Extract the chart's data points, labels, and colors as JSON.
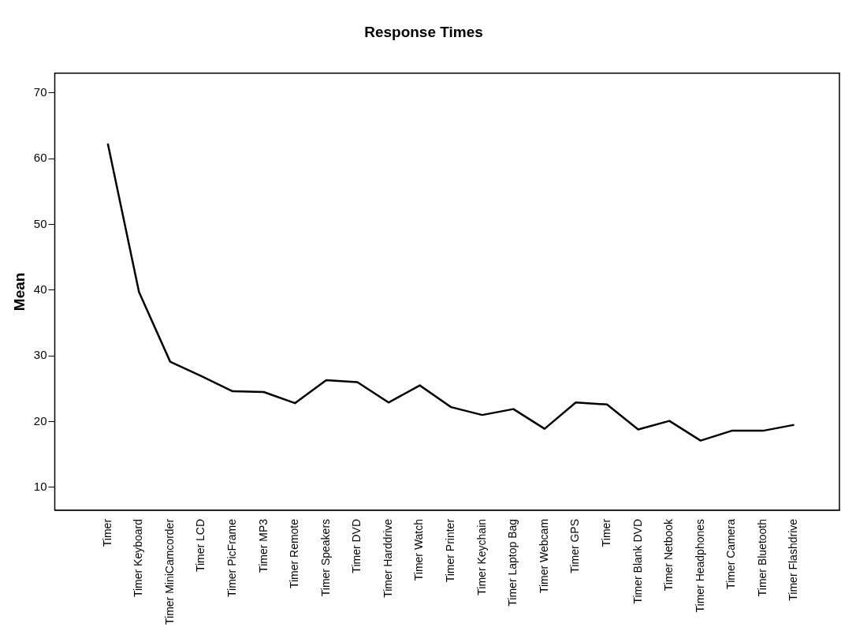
{
  "chart_data": {
    "type": "line",
    "title": "Response Times",
    "ylabel": "Mean",
    "categories": [
      "Timer",
      "Timer Keyboard",
      "Timer MiniCamcorder",
      "Timer LCD",
      "Timer PicFrame",
      "Timer MP3",
      "Timer Remote",
      "Timer Speakers",
      "Timer DVD",
      "Timer Harddrive",
      "Timer Watch",
      "Timer Printer",
      "Timer Keychain",
      "Timer Laptop Bag",
      "Timer Webcam",
      "Timer GPS",
      "Timer",
      "Timer Blank DVD",
      "Timer Netbook",
      "Timer Headphones",
      "Timer Camera",
      "Timer Bluetooth",
      "Timer Flashdrive"
    ],
    "series": [
      {
        "color": "#000000",
        "values": [
          62.3,
          39.7,
          29.1,
          26.9,
          24.6,
          24.5,
          22.8,
          26.3,
          26.0,
          22.9,
          25.5,
          22.2,
          21.0,
          21.9,
          18.9,
          22.9,
          22.6,
          18.8,
          20.1,
          17.1,
          18.6,
          18.6,
          19.5
        ]
      }
    ],
    "ylim": [
      6.5,
      73
    ],
    "yticks": [
      10,
      20,
      30,
      40,
      50,
      60,
      70
    ],
    "grid": false,
    "legend": false,
    "marker": "none",
    "line_style": "solid"
  }
}
